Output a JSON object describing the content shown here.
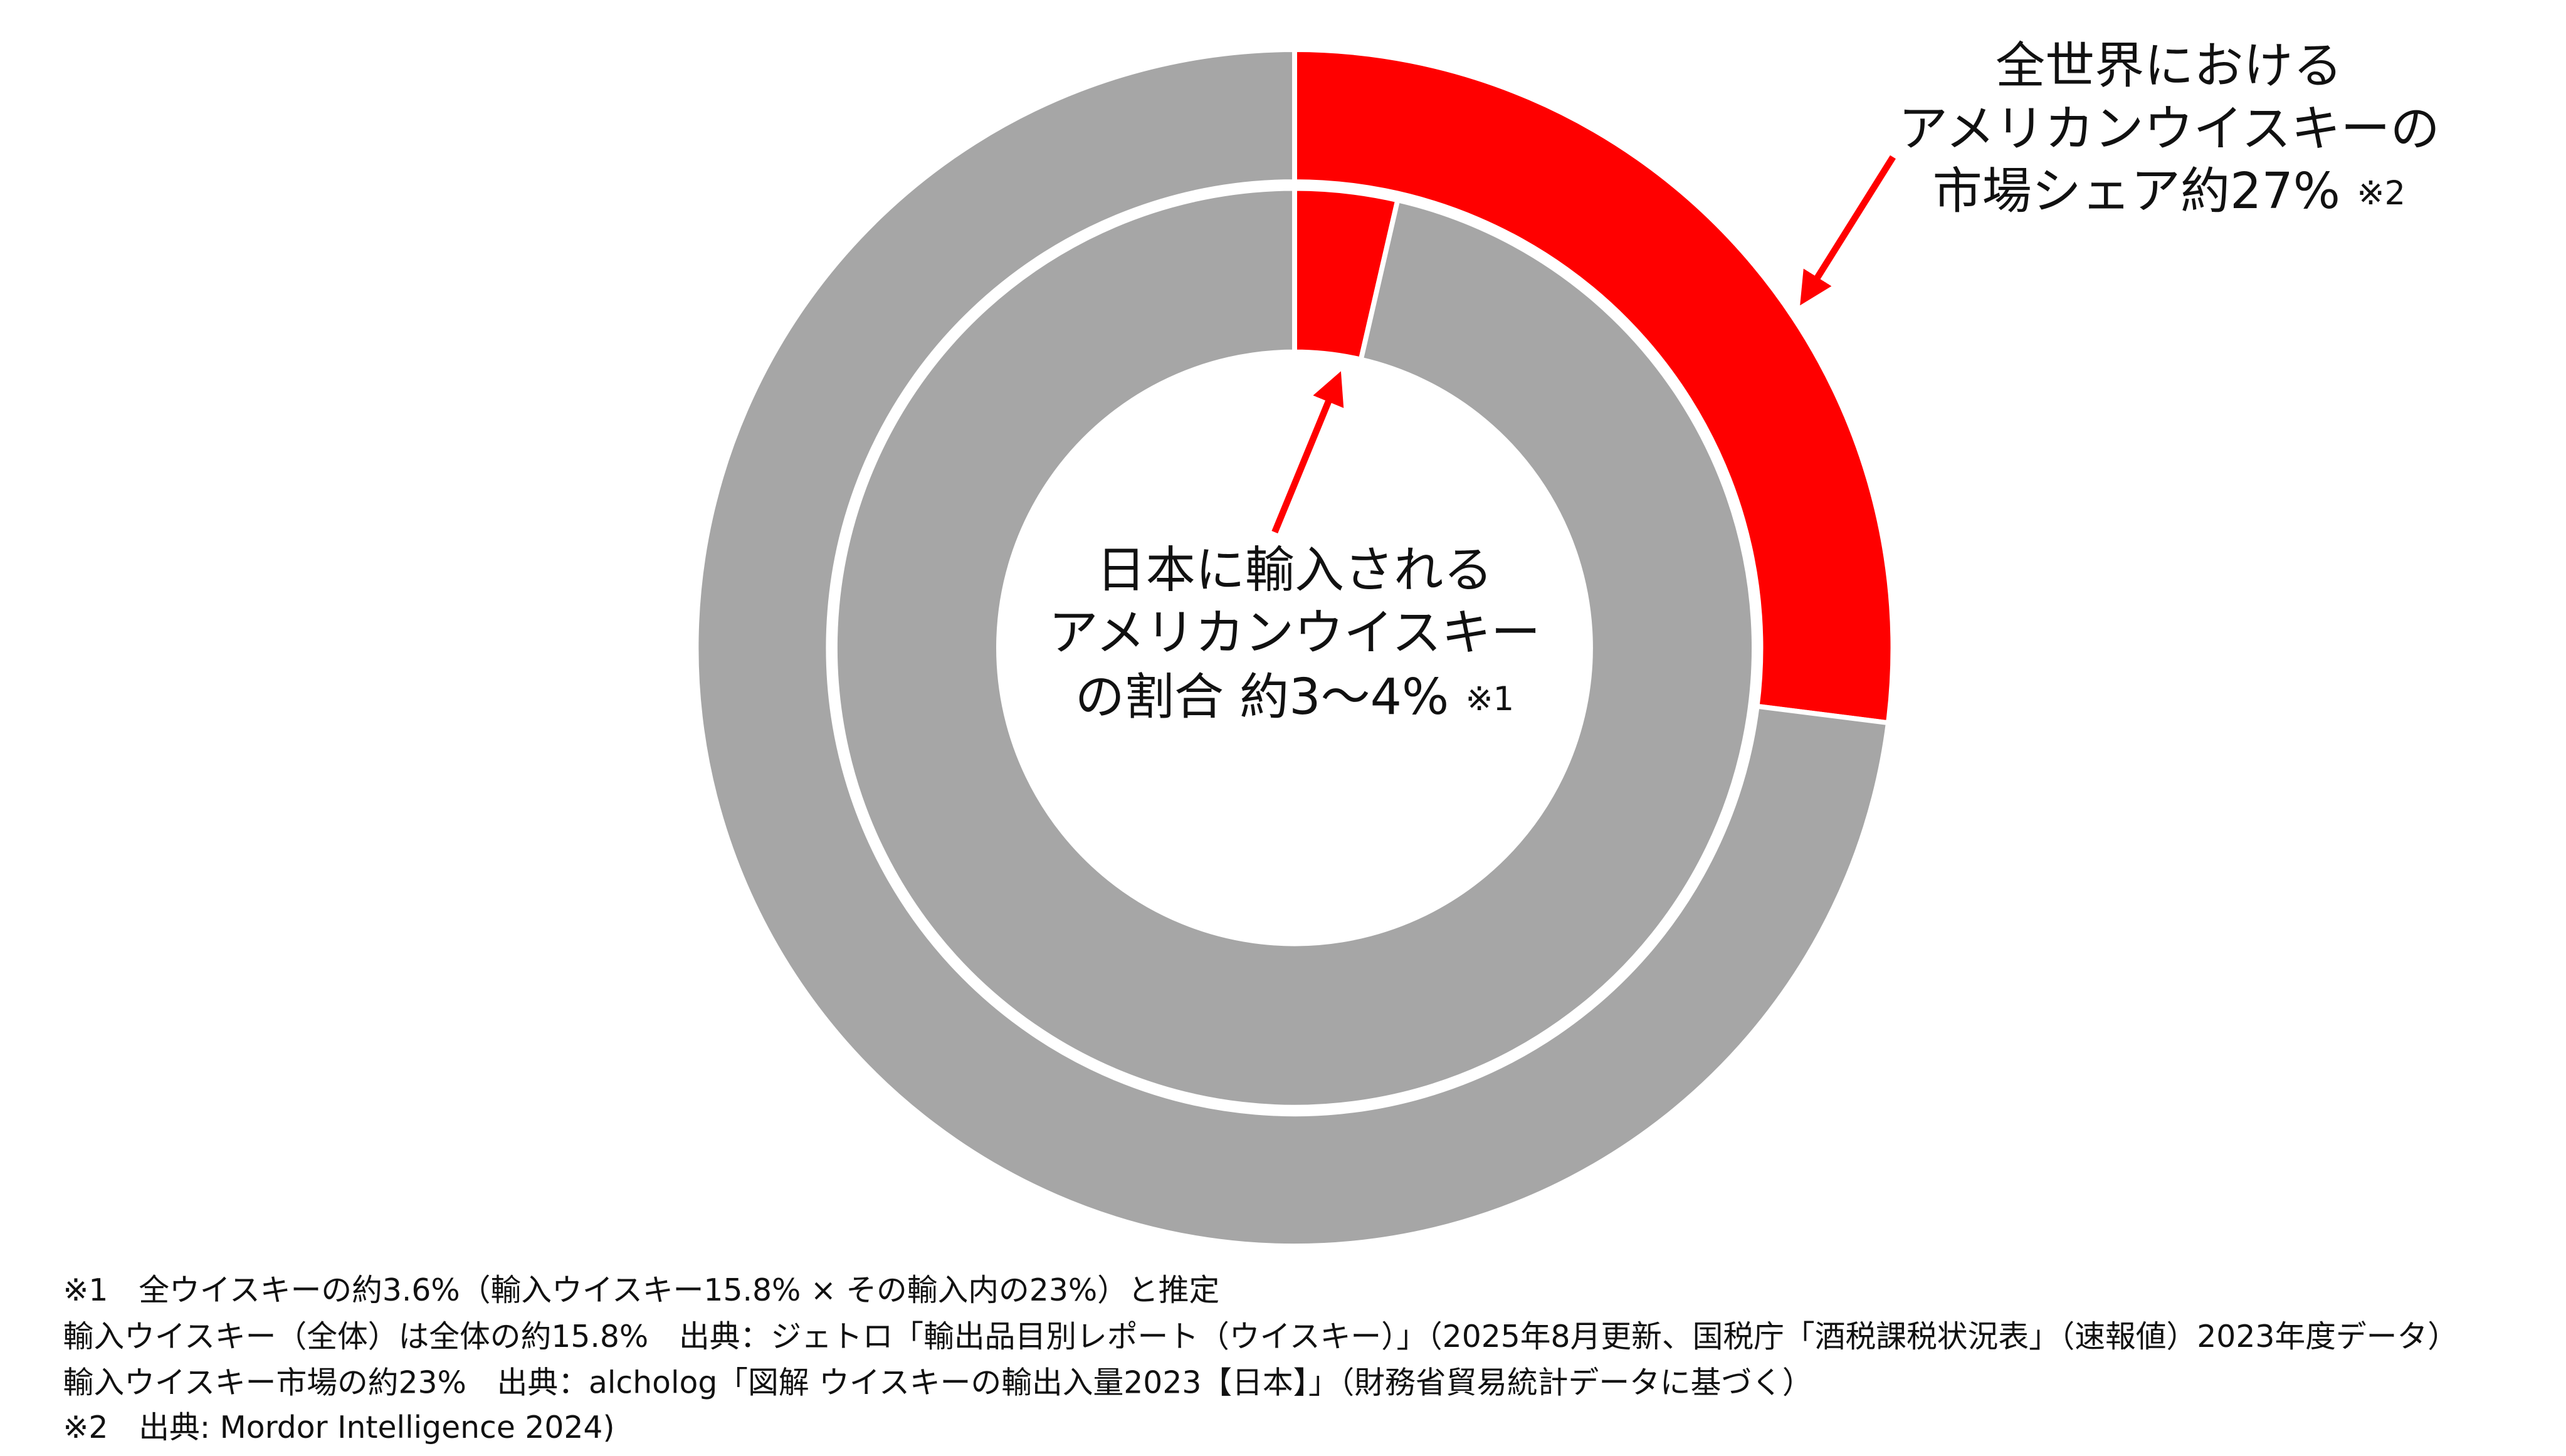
{
  "chart_data": {
    "type": "nested-donut",
    "series": [
      {
        "ring": "outer",
        "colors": [
          "#ff0000",
          "#a6a6a6"
        ],
        "values": [
          27,
          73
        ]
      },
      {
        "ring": "inner",
        "colors": [
          "#ff0000",
          "#a6a6a6"
        ],
        "values": [
          3.6,
          96.4
        ]
      }
    ],
    "annotations": [
      {
        "lines": [
          "全世界における",
          "アメリカンウイスキーの",
          "市場シェア約27%"
        ],
        "note": "※2"
      },
      {
        "lines": [
          "日本に輸入される",
          "アメリカンウイスキー",
          "の割合 約3〜4%"
        ],
        "note": "※1"
      }
    ],
    "footnotes": [
      "※1　全ウイスキーの約3.6%（輸入ウイスキー15.8% × その輸入内の23%）と推定",
      "輸入ウイスキー（全体）は全体の約15.8%　出典：ジェトロ「輸出品目別レポート（ウイスキー）」（2025年8月更新、国税庁「酒税課税状況表」（速報値）2023年度データ）",
      "輸入ウイスキー市場の約23%　出典：alcholog「図解 ウイスキーの輸出入量2023【日本】」（財務省貿易統計データに基づく）",
      "※2　出典: Mordor Intelligence 2024)"
    ]
  }
}
